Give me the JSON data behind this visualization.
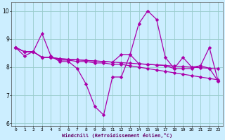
{
  "xlabel": "Windchill (Refroidissement éolien,°C)",
  "x": [
    0,
    1,
    2,
    3,
    4,
    5,
    6,
    7,
    8,
    9,
    10,
    11,
    12,
    13,
    14,
    15,
    16,
    17,
    18,
    19,
    20,
    21,
    22,
    23
  ],
  "line1_y": [
    8.7,
    8.4,
    8.55,
    9.2,
    8.4,
    8.2,
    8.2,
    7.95,
    7.4,
    6.6,
    6.3,
    7.65,
    7.65,
    8.45,
    9.55,
    10.0,
    9.7,
    8.35,
    7.95,
    7.95,
    7.95,
    8.05,
    8.7,
    7.5
  ],
  "line2_y": [
    8.7,
    8.55,
    8.55,
    8.35,
    8.35,
    8.3,
    8.28,
    8.26,
    8.24,
    8.22,
    8.2,
    8.18,
    8.16,
    8.14,
    8.12,
    8.1,
    8.08,
    8.06,
    8.04,
    8.02,
    8.0,
    7.98,
    7.96,
    7.94
  ],
  "line3_y": [
    8.7,
    8.55,
    8.55,
    8.35,
    8.35,
    8.25,
    8.25,
    8.2,
    8.2,
    8.15,
    8.15,
    8.1,
    8.1,
    8.05,
    8.0,
    7.95,
    7.9,
    7.85,
    7.8,
    7.75,
    7.7,
    7.65,
    7.6,
    7.55
  ],
  "line4_y": [
    8.7,
    8.55,
    8.55,
    8.35,
    8.35,
    8.3,
    8.28,
    8.26,
    8.24,
    8.22,
    8.2,
    8.18,
    8.45,
    8.45,
    8.12,
    8.1,
    8.08,
    8.06,
    7.95,
    8.35,
    8.0,
    8.05,
    7.96,
    7.5
  ],
  "ylim": [
    5.9,
    10.3
  ],
  "yticks": [
    6,
    7,
    8,
    9,
    10
  ],
  "xlim": [
    -0.5,
    23.5
  ],
  "line_color": "#aa00aa",
  "bg_color": "#cceeff",
  "grid_color": "#99cccc"
}
